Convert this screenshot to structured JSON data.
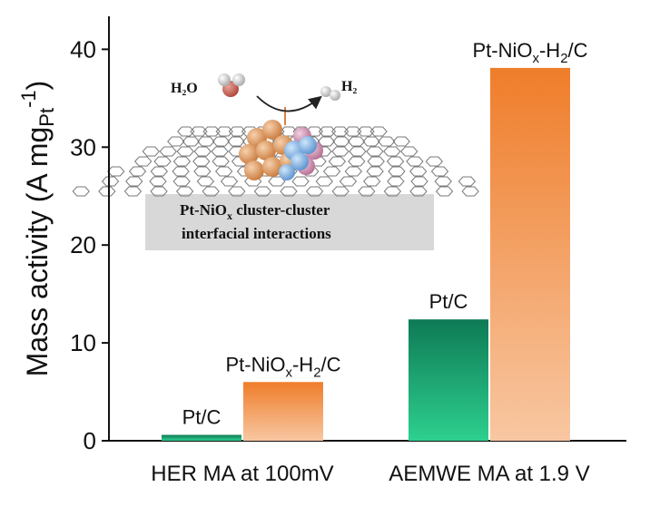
{
  "chart_data": {
    "type": "bar",
    "categories": [
      "HER MA at 100mV",
      "AEMWE MA at 1.9 V"
    ],
    "series": [
      {
        "name": "Pt/C",
        "values": [
          0.6,
          12.4
        ],
        "color_top": "#0e7a55",
        "color_bottom": "#2dd08f"
      },
      {
        "name": "Pt-NiOx-H2/C",
        "values": [
          6.0,
          38.1
        ],
        "color_top": "#ef7d2a",
        "color_bottom": "#f8c7a2"
      }
    ],
    "bar_labels": [
      [
        {
          "main": "Pt/C"
        },
        {
          "main": "Pt/C"
        }
      ],
      [
        {
          "main": "Pt-NiO",
          "sub1": "x",
          "mid": "-H",
          "sub2": "2",
          "tail": "/C"
        },
        {
          "main": "Pt-NiO",
          "sub1": "x",
          "mid": "-H",
          "sub2": "2",
          "tail": "/C"
        }
      ]
    ],
    "ylabel": {
      "main": "Mass activity (A mg",
      "sub": "Pt",
      "sup": "-1",
      "close": ")"
    },
    "ylim": [
      0,
      43
    ],
    "yticks": [
      0,
      10,
      20,
      30,
      40
    ],
    "grid": false
  },
  "inset": {
    "water_label": "H₂O",
    "h2_label": "H₂",
    "caption_line1_a": "Pt-NiO",
    "caption_line1_sub": "x",
    "caption_line1_b": " cluster-cluster",
    "caption_line2": "interfacial interactions"
  }
}
